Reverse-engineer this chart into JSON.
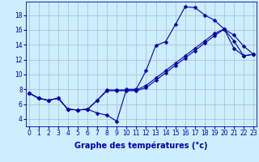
{
  "bg_color": "#cceeff",
  "grid_color": "#aabbcc",
  "line_color": "#0000aa",
  "xlabel": "Graphe des températures (°c)",
  "xlabel_fontsize": 7,
  "tick_fontsize": 5.5,
  "yticks": [
    4,
    6,
    8,
    10,
    12,
    14,
    16,
    18
  ],
  "xticks": [
    0,
    1,
    2,
    3,
    4,
    5,
    6,
    7,
    8,
    9,
    10,
    11,
    12,
    13,
    14,
    15,
    16,
    17,
    18,
    19,
    20,
    21,
    22,
    23
  ],
  "xlim": [
    -0.3,
    23.3
  ],
  "ylim": [
    3.0,
    19.8
  ],
  "line1_y": [
    7.5,
    6.8,
    6.5,
    6.8,
    5.3,
    5.2,
    5.3,
    4.8,
    4.5,
    3.7,
    8.0,
    8.0,
    10.5,
    13.9,
    14.4,
    16.7,
    19.1,
    19.0,
    18.0,
    17.3,
    16.1,
    15.3,
    13.8,
    12.7
  ],
  "line2_y": [
    7.5,
    6.8,
    6.5,
    6.8,
    5.3,
    5.2,
    5.3,
    6.5,
    7.9,
    7.9,
    7.9,
    7.9,
    8.5,
    9.5,
    10.5,
    11.5,
    12.5,
    13.5,
    14.5,
    15.5,
    16.1,
    14.5,
    12.5,
    12.7
  ],
  "line3_y": [
    7.5,
    6.8,
    6.5,
    6.8,
    5.3,
    5.2,
    5.3,
    6.5,
    7.8,
    7.8,
    7.8,
    7.8,
    8.2,
    9.2,
    10.2,
    11.2,
    12.2,
    13.2,
    14.2,
    15.2,
    16.1,
    13.5,
    12.5,
    12.7
  ],
  "marker_size": 2.5,
  "line_width": 0.8
}
